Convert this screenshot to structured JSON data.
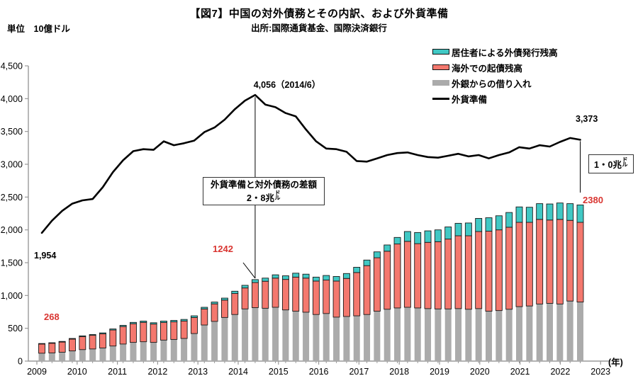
{
  "title": "【図7】中国の対外債務とその内訳、および外貨準備",
  "subtitle": "出所:国際通貨基金、国際決済銀行",
  "unit_label": "単位　10億ドル",
  "legend": {
    "items": [
      {
        "label": "居住者による外債発行残高",
        "series": "resident_bonds",
        "swatch": "box",
        "color": "#40c8c4"
      },
      {
        "label": "海外での起債残高",
        "series": "overseas_bonds",
        "swatch": "box",
        "color": "#f4786e"
      },
      {
        "label": "外銀からの借り入れ",
        "series": "bank_borrowing",
        "swatch": "box-plain",
        "color": "#ababab"
      },
      {
        "label": "外貨準備",
        "series": "fx_reserves",
        "swatch": "line",
        "color": "#000000"
      }
    ]
  },
  "colors": {
    "resident_bonds": "#40c8c4",
    "overseas_bonds": "#f4786e",
    "bank_borrowing": "#ababab",
    "fx_reserves_line": "#000000",
    "bar_outline": "#1a1a1a",
    "axis": "#9a9a9a",
    "annotation_red": "#d93531"
  },
  "annotations": {
    "peak_label": "4,056（2014/6）",
    "line_start": "1,954",
    "line_end": "3,373",
    "bar_start": "268",
    "bar_mid": "1242",
    "bar_end": "2380",
    "box_mid_line1": "外貨準備と対外債務の差額",
    "box_mid_line2": "2・8兆",
    "box_mid_small": "ドル",
    "box_right_main": "1・0兆",
    "box_right_small": "ドル",
    "year_suffix": "(年)"
  },
  "axis": {
    "y_tick_labels": [
      "0",
      "500",
      "1,000",
      "1,500",
      "2,000",
      "2,500",
      "3,000",
      "3,500",
      "4,000",
      "4,500"
    ],
    "y_tick_values": [
      0,
      500,
      1000,
      1500,
      2000,
      2500,
      3000,
      3500,
      4000,
      4500
    ],
    "x_year_labels": [
      "2009",
      "2010",
      "2011",
      "2012",
      "2013",
      "2014",
      "2015",
      "2016",
      "2017",
      "2018",
      "2019",
      "2020",
      "2021",
      "2022",
      "2023"
    ]
  },
  "chart_data": {
    "type": "bar",
    "subtype": "stacked-bars-with-line",
    "x_unit": "quarter",
    "x_range": [
      "2009Q1",
      "2022Q2"
    ],
    "ylabel": "10億ドル",
    "ylim": [
      0,
      4500
    ],
    "grid": false,
    "legend_position": "top-right",
    "categories": [
      "2009Q1",
      "2009Q2",
      "2009Q3",
      "2009Q4",
      "2010Q1",
      "2010Q2",
      "2010Q3",
      "2010Q4",
      "2011Q1",
      "2011Q2",
      "2011Q3",
      "2011Q4",
      "2012Q1",
      "2012Q2",
      "2012Q3",
      "2012Q4",
      "2013Q1",
      "2013Q2",
      "2013Q3",
      "2013Q4",
      "2014Q1",
      "2014Q2",
      "2014Q3",
      "2014Q4",
      "2015Q1",
      "2015Q2",
      "2015Q3",
      "2015Q4",
      "2016Q1",
      "2016Q2",
      "2016Q3",
      "2016Q4",
      "2017Q1",
      "2017Q2",
      "2017Q3",
      "2017Q4",
      "2018Q1",
      "2018Q2",
      "2018Q3",
      "2018Q4",
      "2019Q1",
      "2019Q2",
      "2019Q3",
      "2019Q4",
      "2020Q1",
      "2020Q2",
      "2020Q3",
      "2020Q4",
      "2021Q1",
      "2021Q2",
      "2021Q3",
      "2021Q4",
      "2022Q1",
      "2022Q2"
    ],
    "series": [
      {
        "name": "外銀からの借り入れ",
        "role": "stack-bottom",
        "color": "#ababab",
        "values": [
          120,
          125,
          135,
          155,
          175,
          185,
          200,
          230,
          260,
          285,
          295,
          285,
          320,
          330,
          345,
          420,
          550,
          605,
          665,
          710,
          795,
          815,
          805,
          820,
          780,
          760,
          745,
          710,
          725,
          670,
          680,
          690,
          710,
          760,
          790,
          810,
          820,
          810,
          800,
          795,
          795,
          800,
          790,
          800,
          760,
          770,
          790,
          830,
          840,
          870,
          880,
          870,
          915,
          900
        ]
      },
      {
        "name": "海外での起債残高",
        "role": "stack-middle",
        "color": "#f4786e",
        "values": [
          140,
          147,
          155,
          180,
          198,
          208,
          216,
          244,
          267,
          285,
          295,
          280,
          268,
          268,
          266,
          244,
          245,
          267,
          265,
          320,
          320,
          382,
          412,
          445,
          465,
          520,
          520,
          510,
          510,
          550,
          580,
          660,
          745,
          815,
          885,
          975,
          1005,
          980,
          1010,
          1025,
          1065,
          1110,
          1120,
          1175,
          1220,
          1230,
          1250,
          1285,
          1275,
          1290,
          1270,
          1290,
          1230,
          1215
        ]
      },
      {
        "name": "居住者による外債発行残高",
        "role": "stack-top",
        "color": "#40c8c4",
        "values": [
          8,
          8,
          10,
          10,
          12,
          12,
          14,
          16,
          18,
          20,
          20,
          20,
          22,
          22,
          24,
          26,
          25,
          28,
          30,
          35,
          40,
          45,
          48,
          50,
          55,
          60,
          60,
          60,
          70,
          70,
          75,
          80,
          85,
          90,
          95,
          100,
          150,
          170,
          175,
          180,
          185,
          190,
          195,
          200,
          205,
          215,
          225,
          235,
          230,
          240,
          245,
          250,
          255,
          265
        ]
      },
      {
        "name": "外貨準備",
        "role": "line",
        "color": "#000000",
        "values": [
          1954,
          2140,
          2290,
          2400,
          2450,
          2470,
          2650,
          2880,
          3060,
          3200,
          3230,
          3220,
          3350,
          3290,
          3320,
          3360,
          3490,
          3560,
          3680,
          3840,
          3970,
          4056,
          3910,
          3870,
          3780,
          3730,
          3530,
          3350,
          3240,
          3230,
          3190,
          3050,
          3040,
          3090,
          3140,
          3170,
          3180,
          3140,
          3110,
          3100,
          3130,
          3160,
          3120,
          3140,
          3090,
          3140,
          3180,
          3260,
          3240,
          3290,
          3270,
          3340,
          3400,
          3373
        ]
      }
    ],
    "highlights": {
      "fx_reserves_peak": {
        "x": "2014Q2",
        "value": 4056,
        "label": "4,056（2014/6）"
      },
      "fx_reserves_first": {
        "x": "2009Q1",
        "value": 1954,
        "label": "1,954"
      },
      "fx_reserves_last": {
        "x": "2022Q2",
        "value": 3373,
        "label": "3,373"
      },
      "total_debt_first": {
        "x": "2009Q1",
        "value": 268,
        "label": "268"
      },
      "total_debt_2014Q2": {
        "x": "2014Q2",
        "value": 1242,
        "label": "1242"
      },
      "total_debt_last": {
        "x": "2022Q2",
        "value": 2380,
        "label": "2380"
      },
      "gap_2014": "2.8兆ドル",
      "gap_2022": "1.0兆ドル"
    }
  }
}
